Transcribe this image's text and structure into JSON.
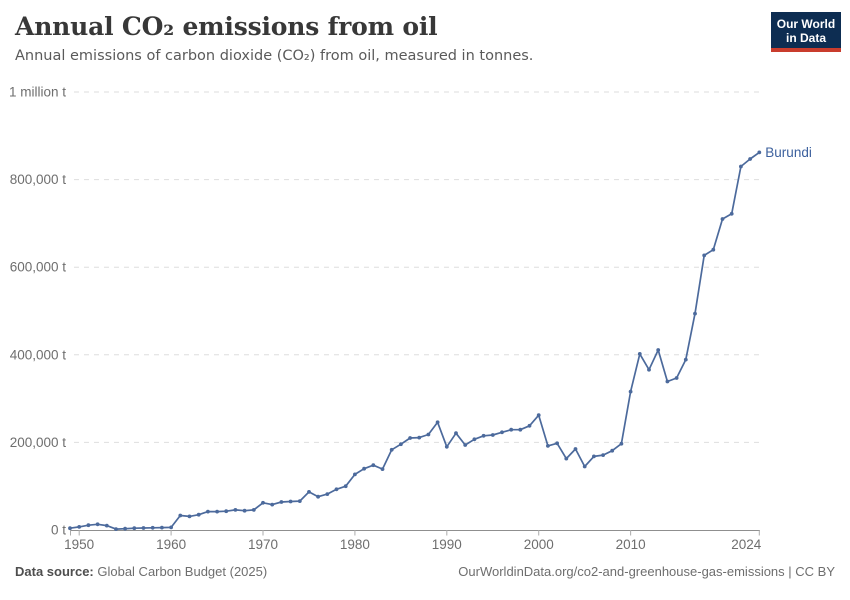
{
  "header": {
    "title": "Annual CO₂ emissions from oil",
    "subtitle": "Annual emissions of carbon dioxide (CO₂) from oil, measured in tonnes.",
    "logo": {
      "line1": "Our World",
      "line2": "in Data",
      "bg_color": "#0d2d52",
      "accent_color": "#c93c2d"
    }
  },
  "chart_data": {
    "type": "line",
    "title": "Annual CO₂ emissions from oil",
    "unit": "t",
    "grid": "horizontal-dashed",
    "legend_position": "end-of-line-label",
    "xlim": [
      1949,
      2024
    ],
    "ylim": [
      0,
      1000000
    ],
    "xticks": [
      1950,
      1960,
      1970,
      1980,
      1990,
      2000,
      2010,
      2024
    ],
    "yticks": [
      {
        "value": 0,
        "label": "0 t"
      },
      {
        "value": 200000,
        "label": "200,000 t"
      },
      {
        "value": 400000,
        "label": "400,000 t"
      },
      {
        "value": 600000,
        "label": "600,000 t"
      },
      {
        "value": 800000,
        "label": "800,000 t"
      },
      {
        "value": 1000000,
        "label": "1 million t"
      }
    ],
    "series": [
      {
        "name": "Burundi",
        "color": "#4c6a9c",
        "label_color": "#3d619e",
        "x": [
          1949,
          1950,
          1951,
          1952,
          1953,
          1954,
          1955,
          1956,
          1957,
          1958,
          1959,
          1960,
          1961,
          1962,
          1963,
          1964,
          1965,
          1966,
          1967,
          1968,
          1969,
          1970,
          1971,
          1972,
          1973,
          1974,
          1975,
          1976,
          1977,
          1978,
          1979,
          1980,
          1981,
          1982,
          1983,
          1984,
          1985,
          1986,
          1987,
          1988,
          1989,
          1990,
          1991,
          1992,
          1993,
          1994,
          1995,
          1996,
          1997,
          1998,
          1999,
          2000,
          2001,
          2002,
          2003,
          2004,
          2005,
          2006,
          2007,
          2008,
          2009,
          2010,
          2011,
          2012,
          2013,
          2014,
          2015,
          2016,
          2017,
          2018,
          2019,
          2020,
          2021,
          2022,
          2023,
          2024
        ],
        "values": [
          4000,
          7000,
          11000,
          13000,
          10000,
          2000,
          3000,
          4000,
          4500,
          5000,
          5500,
          6000,
          33000,
          31000,
          35000,
          42000,
          42000,
          43000,
          46000,
          44000,
          46000,
          62000,
          58000,
          64000,
          65000,
          66000,
          87000,
          76000,
          82000,
          93000,
          100000,
          127000,
          140000,
          148000,
          139000,
          183000,
          196000,
          210000,
          211000,
          218000,
          246000,
          190000,
          221000,
          194000,
          207000,
          215000,
          217000,
          223000,
          229000,
          229000,
          238000,
          262000,
          192000,
          198000,
          163000,
          185000,
          145000,
          168000,
          171000,
          181000,
          197000,
          316000,
          402000,
          366000,
          411000,
          339000,
          347000,
          389000,
          494000,
          627000,
          640000,
          710000,
          722000,
          830000,
          847000,
          862000
        ]
      }
    ]
  },
  "footer": {
    "source_label": "Data source:",
    "source_value": " Global Carbon Budget (2025)",
    "link": "OurWorldinData.org/co2-and-greenhouse-gas-emissions | CC BY"
  },
  "style_colors": {
    "line": "#4c6a9c",
    "grid": "#dedede",
    "axis": "#8f8f8f",
    "tick": "#ababab",
    "tick_text": "#6e6e6e"
  }
}
